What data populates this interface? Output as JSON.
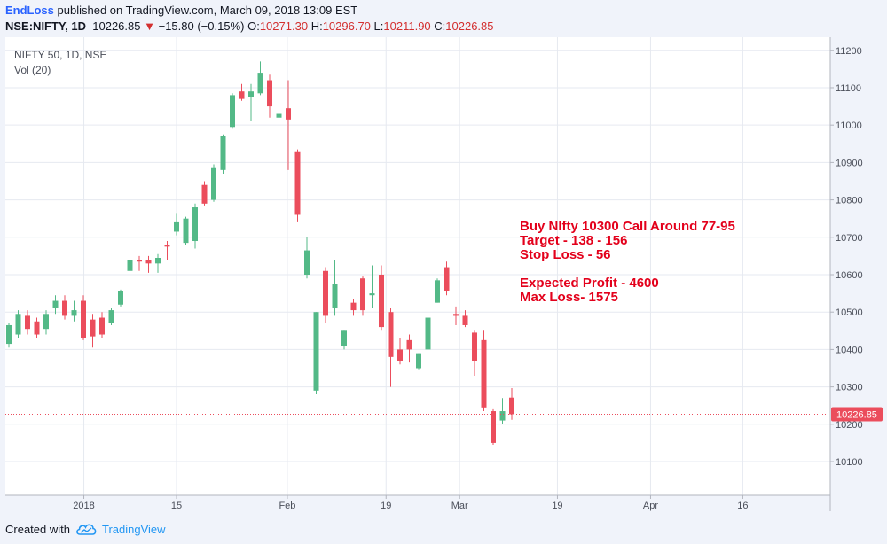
{
  "header": {
    "author": "EndLoss",
    "published_text": "published on TradingView.com, March 09, 2018 13:09 EST",
    "symbol": "NSE:NIFTY, 1D",
    "last": "10226.85",
    "change_arrow": "▼",
    "change": "−15.80 (−0.15%)",
    "open_label": "O:",
    "open": "10271.30",
    "high_label": "H:",
    "high": "10296.70",
    "low_label": "L:",
    "low": "10211.90",
    "close_label": "C:",
    "close": "10226.85"
  },
  "legend": {
    "title": "NIFTY 50, 1D, NSE",
    "volume": "Vol (20)"
  },
  "price_label": "10226.85",
  "annotation": [
    "Buy NIfty 10300 Call Around 77-95",
    "Target - 138 - 156",
    "Stop Loss - 56",
    "",
    "Expected Profit - 4600",
    "Max Loss- 1575"
  ],
  "footer": {
    "created_with": "Created with",
    "brand": "TradingView"
  },
  "colors": {
    "up": "#53b987",
    "down": "#eb4d5c",
    "grid": "#e6e9f0",
    "annotation": "#e3001b",
    "price_line": "#eb4d5c"
  },
  "chart_data": {
    "type": "candlestick",
    "y_range": [
      10010,
      11235
    ],
    "y_ticks": [
      10100,
      10200,
      10300,
      10400,
      10500,
      10600,
      10700,
      10800,
      10900,
      11000,
      11100,
      11200
    ],
    "x_ticks": [
      {
        "label": "2018",
        "index": 8.05
      },
      {
        "label": "15",
        "index": 18.0
      },
      {
        "label": "Feb",
        "index": 29.9
      },
      {
        "label": "19",
        "index": 40.5
      },
      {
        "label": "Mar",
        "index": 48.4
      },
      {
        "label": "19",
        "index": 58.9
      },
      {
        "label": "Apr",
        "index": 68.9
      },
      {
        "label": "16",
        "index": 78.8
      }
    ],
    "last_price": 10226.85,
    "candles": [
      {
        "o": 10415,
        "h": 10470,
        "l": 10405,
        "c": 10465
      },
      {
        "o": 10440,
        "h": 10505,
        "l": 10430,
        "c": 10495
      },
      {
        "o": 10490,
        "h": 10505,
        "l": 10440,
        "c": 10455
      },
      {
        "o": 10475,
        "h": 10485,
        "l": 10430,
        "c": 10440
      },
      {
        "o": 10455,
        "h": 10505,
        "l": 10440,
        "c": 10495
      },
      {
        "o": 10510,
        "h": 10545,
        "l": 10495,
        "c": 10530
      },
      {
        "o": 10530,
        "h": 10545,
        "l": 10480,
        "c": 10490
      },
      {
        "o": 10490,
        "h": 10530,
        "l": 10475,
        "c": 10505
      },
      {
        "o": 10530,
        "h": 10545,
        "l": 10425,
        "c": 10430
      },
      {
        "o": 10480,
        "h": 10495,
        "l": 10405,
        "c": 10435
      },
      {
        "o": 10485,
        "h": 10500,
        "l": 10430,
        "c": 10440
      },
      {
        "o": 10470,
        "h": 10510,
        "l": 10465,
        "c": 10505
      },
      {
        "o": 10520,
        "h": 10560,
        "l": 10515,
        "c": 10555
      },
      {
        "o": 10610,
        "h": 10645,
        "l": 10590,
        "c": 10640
      },
      {
        "o": 10640,
        "h": 10650,
        "l": 10610,
        "c": 10635
      },
      {
        "o": 10640,
        "h": 10650,
        "l": 10605,
        "c": 10630
      },
      {
        "o": 10630,
        "h": 10655,
        "l": 10605,
        "c": 10645
      },
      {
        "o": 10680,
        "h": 10690,
        "l": 10640,
        "c": 10675
      },
      {
        "o": 10715,
        "h": 10765,
        "l": 10705,
        "c": 10740
      },
      {
        "o": 10685,
        "h": 10755,
        "l": 10680,
        "c": 10750
      },
      {
        "o": 10690,
        "h": 10790,
        "l": 10670,
        "c": 10780
      },
      {
        "o": 10840,
        "h": 10850,
        "l": 10785,
        "c": 10790
      },
      {
        "o": 10800,
        "h": 10895,
        "l": 10795,
        "c": 10885
      },
      {
        "o": 10880,
        "h": 10975,
        "l": 10870,
        "c": 10970
      },
      {
        "o": 10995,
        "h": 11085,
        "l": 10990,
        "c": 11080
      },
      {
        "o": 11090,
        "h": 11110,
        "l": 11065,
        "c": 11070
      },
      {
        "o": 11075,
        "h": 11110,
        "l": 11010,
        "c": 11090
      },
      {
        "o": 11085,
        "h": 11170,
        "l": 11080,
        "c": 11140
      },
      {
        "o": 11120,
        "h": 11135,
        "l": 11020,
        "c": 11050
      },
      {
        "o": 11020,
        "h": 11035,
        "l": 10980,
        "c": 11030
      },
      {
        "o": 11045,
        "h": 11120,
        "l": 10880,
        "c": 11015
      },
      {
        "o": 10930,
        "h": 10935,
        "l": 10740,
        "c": 10760
      },
      {
        "o": 10600,
        "h": 10700,
        "l": 10590,
        "c": 10665
      },
      {
        "o": 10290,
        "h": 10500,
        "l": 10280,
        "c": 10500
      },
      {
        "o": 10610,
        "h": 10620,
        "l": 10470,
        "c": 10490
      },
      {
        "o": 10510,
        "h": 10640,
        "l": 10490,
        "c": 10575
      },
      {
        "o": 10410,
        "h": 10450,
        "l": 10400,
        "c": 10450
      },
      {
        "o": 10525,
        "h": 10535,
        "l": 10490,
        "c": 10505
      },
      {
        "o": 10590,
        "h": 10595,
        "l": 10490,
        "c": 10505
      },
      {
        "o": 10545,
        "h": 10625,
        "l": 10510,
        "c": 10550
      },
      {
        "o": 10600,
        "h": 10625,
        "l": 10450,
        "c": 10460
      },
      {
        "o": 10500,
        "h": 10510,
        "l": 10300,
        "c": 10380
      },
      {
        "o": 10400,
        "h": 10430,
        "l": 10360,
        "c": 10370
      },
      {
        "o": 10425,
        "h": 10440,
        "l": 10365,
        "c": 10400
      },
      {
        "o": 10350,
        "h": 10390,
        "l": 10345,
        "c": 10390
      },
      {
        "o": 10400,
        "h": 10500,
        "l": 10395,
        "c": 10485
      },
      {
        "o": 10525,
        "h": 10590,
        "l": 10525,
        "c": 10585
      },
      {
        "o": 10620,
        "h": 10635,
        "l": 10545,
        "c": 10555
      },
      {
        "o": 10495,
        "h": 10515,
        "l": 10465,
        "c": 10490
      },
      {
        "o": 10490,
        "h": 10505,
        "l": 10460,
        "c": 10465
      },
      {
        "o": 10445,
        "h": 10450,
        "l": 10330,
        "c": 10370
      },
      {
        "o": 10425,
        "h": 10450,
        "l": 10235,
        "c": 10245
      },
      {
        "o": 10235,
        "h": 10240,
        "l": 10145,
        "c": 10150
      },
      {
        "o": 10210,
        "h": 10270,
        "l": 10200,
        "c": 10235
      },
      {
        "o": 10271.3,
        "h": 10296.7,
        "l": 10211.9,
        "c": 10226.85
      }
    ]
  }
}
